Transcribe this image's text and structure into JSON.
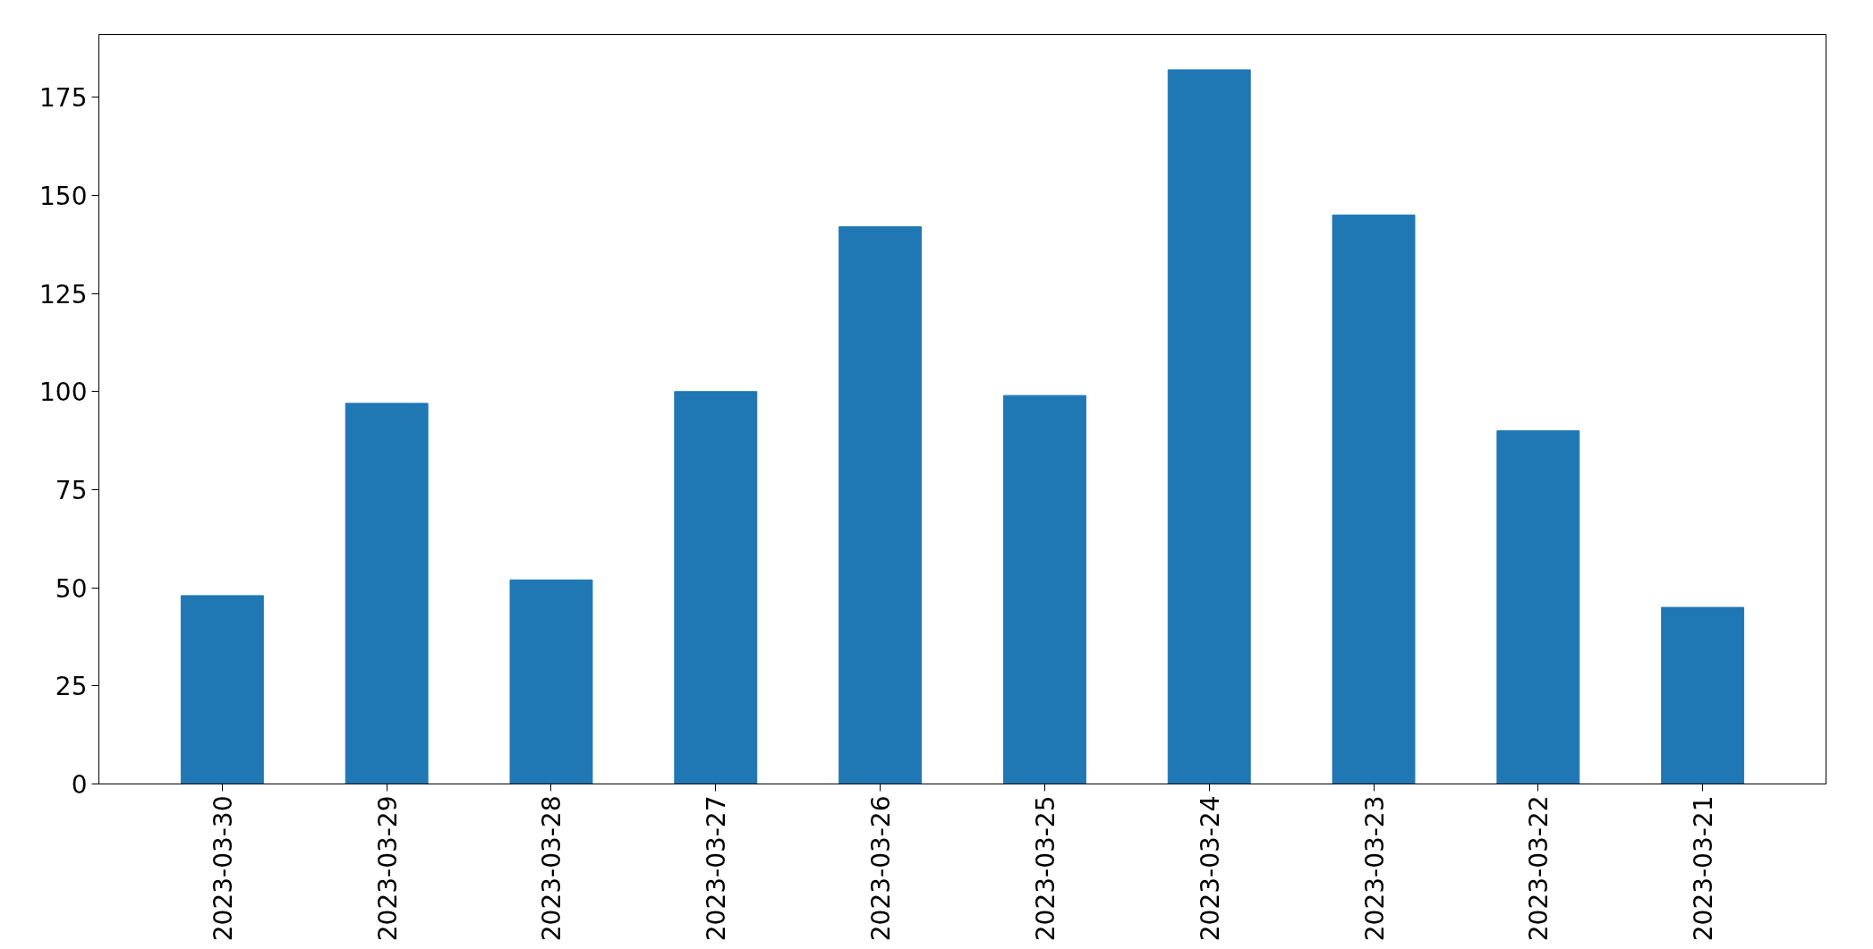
{
  "chart_data": {
    "type": "bar",
    "categories": [
      "2023-03-30",
      "2023-03-29",
      "2023-03-28",
      "2023-03-27",
      "2023-03-26",
      "2023-03-25",
      "2023-03-24",
      "2023-03-23",
      "2023-03-22",
      "2023-03-21"
    ],
    "values": [
      48,
      97,
      52,
      100,
      142,
      99,
      182,
      145,
      90,
      45
    ],
    "color": "#1f77b4",
    "ylim": [
      0,
      191
    ],
    "yticks": [
      0,
      25,
      50,
      75,
      100,
      125,
      150,
      175
    ],
    "grid": false
  }
}
